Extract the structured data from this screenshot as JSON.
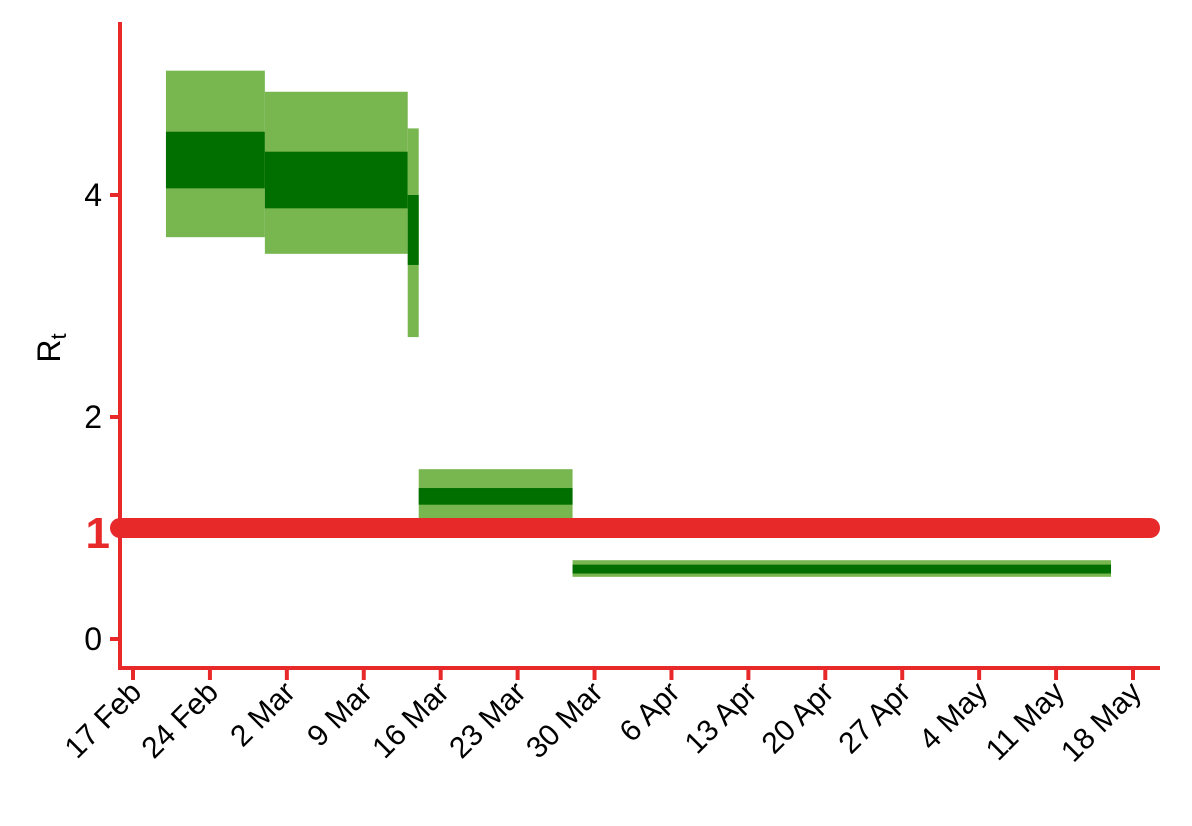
{
  "chart_data": {
    "type": "area",
    "title": "",
    "xlabel": "",
    "ylabel": "R",
    "ylabel_subscript": "t",
    "ylim": [
      -0.25,
      5.55
    ],
    "xlim": [
      "2020-02-16",
      "2020-05-20"
    ],
    "grid": false,
    "y_ticks": [
      "0",
      "2",
      "4"
    ],
    "y_tick_values": [
      0,
      2,
      4
    ],
    "x_ticks": [
      "17 Feb",
      "24 Feb",
      "2 Mar",
      "9 Mar",
      "16 Mar",
      "23 Mar",
      "30 Mar",
      "6 Apr",
      "13 Apr",
      "20 Apr",
      "27 Apr",
      "4 May",
      "11 May",
      "18 May"
    ],
    "x_tick_dates": [
      "2020-02-17",
      "2020-02-24",
      "2020-03-02",
      "2020-03-09",
      "2020-03-16",
      "2020-03-23",
      "2020-03-30",
      "2020-04-06",
      "2020-04-13",
      "2020-04-20",
      "2020-04-27",
      "2020-05-04",
      "2020-05-11",
      "2020-05-18"
    ],
    "reference_line": {
      "value": 1,
      "label": "1",
      "color": "#e8292a"
    },
    "segments": [
      {
        "start": "2020-02-20",
        "end": "2020-02-29",
        "outer": [
          3.62,
          5.12
        ],
        "inner": [
          4.06,
          4.57
        ]
      },
      {
        "start": "2020-02-29",
        "end": "2020-03-13",
        "outer": [
          3.47,
          4.93
        ],
        "inner": [
          3.88,
          4.39
        ]
      },
      {
        "start": "2020-03-13",
        "end": "2020-03-14",
        "outer": [
          2.72,
          4.6
        ],
        "inner": [
          3.37,
          4.0
        ]
      },
      {
        "start": "2020-03-14",
        "end": "2020-03-28",
        "outer": [
          1.08,
          1.53
        ],
        "inner": [
          1.21,
          1.36
        ]
      },
      {
        "start": "2020-03-28",
        "end": "2020-05-16",
        "outer": [
          0.56,
          0.71
        ],
        "inner": [
          0.59,
          0.67
        ]
      }
    ],
    "colors": {
      "outer": "#78b650",
      "inner": "#006f00",
      "axis": "#e8292a",
      "text": "#000000"
    }
  }
}
